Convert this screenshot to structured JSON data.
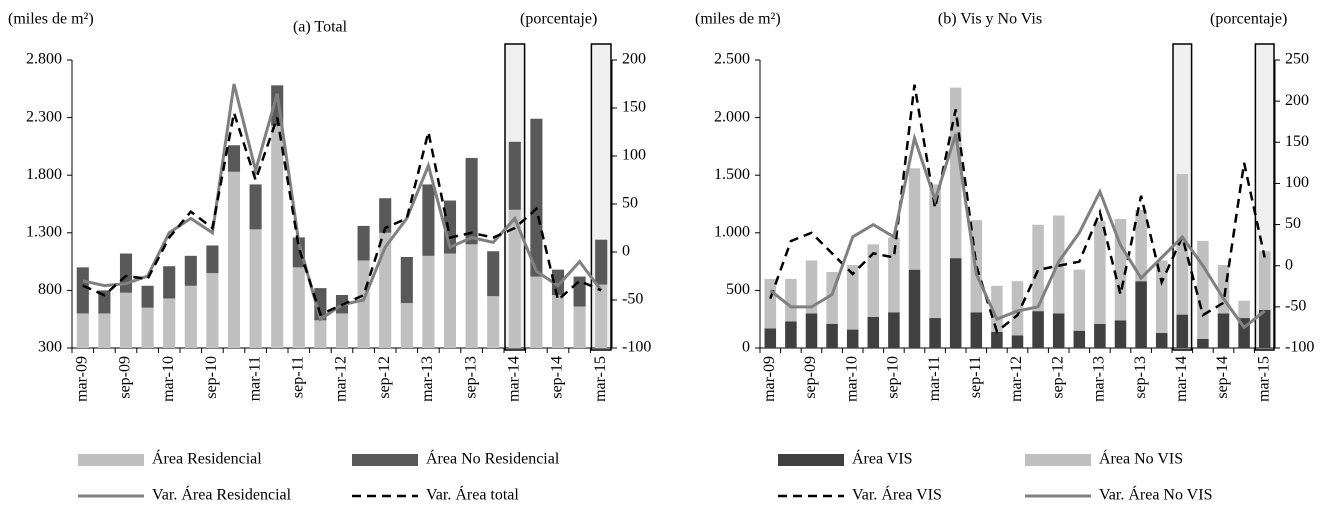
{
  "chart_data": [
    {
      "type": "bar",
      "title": "(a) Total",
      "y_label": "(miles de m²)",
      "y2_label": "(porcentaje)",
      "categories": [
        "mar-09",
        null,
        "sep-09",
        null,
        "mar-10",
        null,
        "sep-10",
        null,
        "mar-11",
        null,
        "sep-11",
        null,
        "mar-12",
        null,
        "sep-12",
        null,
        "mar-13",
        null,
        "sep-13",
        null,
        "mar-14",
        null,
        "sep-14",
        null,
        "mar-15"
      ],
      "ylim": [
        300,
        2800
      ],
      "yticks": [
        300,
        800,
        {
          "value": 1300,
          "label": "1.300"
        },
        {
          "value": 1800,
          "label": "1.800"
        },
        {
          "value": 2300,
          "label": "2.300"
        },
        {
          "value": 2800,
          "label": "2.800"
        }
      ],
      "y2lim": [
        -100,
        200
      ],
      "y2ticks": [
        -100,
        -50,
        0,
        50,
        100,
        150,
        200
      ],
      "series": [
        {
          "name": "Área Residencial",
          "type": "bar",
          "color": "#c0c0c0",
          "values": [
            600,
            600,
            780,
            650,
            730,
            840,
            950,
            1830,
            1330,
            2230,
            1000,
            540,
            600,
            1060,
            1300,
            690,
            1100,
            1120,
            1200,
            750,
            1500,
            920,
            760,
            660,
            850
          ]
        },
        {
          "name": "Área No Residencial",
          "type": "bar",
          "color": "#595959",
          "values": [
            400,
            200,
            340,
            190,
            280,
            260,
            240,
            230,
            390,
            350,
            260,
            280,
            160,
            300,
            300,
            400,
            620,
            460,
            750,
            390,
            590,
            1370,
            220,
            260,
            390
          ]
        },
        {
          "name": "Var. Área Residencial",
          "type": "line",
          "axis": "y2",
          "color": "#808080",
          "dash": false,
          "values": [
            -30,
            -35,
            -33,
            -25,
            20,
            35,
            20,
            175,
            85,
            165,
            10,
            -70,
            -55,
            -50,
            5,
            35,
            90,
            5,
            15,
            10,
            35,
            -20,
            -35,
            -10,
            -40
          ]
        },
        {
          "name": "Var. Área total",
          "type": "line",
          "axis": "y2",
          "color": "#000000",
          "dash": true,
          "values": [
            -35,
            -45,
            -25,
            -28,
            15,
            42,
            25,
            145,
            75,
            140,
            5,
            -65,
            -55,
            -45,
            25,
            35,
            125,
            15,
            20,
            15,
            25,
            45,
            -50,
            -30,
            -40
          ]
        }
      ]
    },
    {
      "type": "bar",
      "title": "(b) Vis y No Vis",
      "y_label": "(miles de m²)",
      "y2_label": "(porcentaje)",
      "categories": [
        "mar-09",
        null,
        "sep-09",
        null,
        "mar-10",
        null,
        "sep-10",
        null,
        "mar-11",
        null,
        "sep-11",
        null,
        "mar-12",
        null,
        "sep-12",
        null,
        "mar-13",
        null,
        "sep-13",
        null,
        "mar-14",
        null,
        "sep-14",
        null,
        "mar-15"
      ],
      "ylim": [
        0,
        2500
      ],
      "yticks": [
        0,
        500,
        {
          "value": 1000,
          "label": "1.000"
        },
        {
          "value": 1500,
          "label": "1.500"
        },
        {
          "value": 2000,
          "label": "2.000"
        },
        {
          "value": 2500,
          "label": "2.500"
        }
      ],
      "y2lim": [
        -100,
        250
      ],
      "y2ticks": [
        -100,
        -50,
        0,
        50,
        100,
        150,
        200,
        250
      ],
      "series": [
        {
          "name": "Área VIS",
          "type": "bar",
          "color": "#404040",
          "values": [
            170,
            230,
            300,
            210,
            160,
            270,
            310,
            680,
            260,
            780,
            310,
            140,
            110,
            320,
            300,
            150,
            210,
            240,
            580,
            130,
            290,
            80,
            300,
            260,
            330
          ]
        },
        {
          "name": "Área No VIS",
          "type": "bar",
          "color": "#c0c0c0",
          "values": [
            430,
            370,
            460,
            450,
            560,
            630,
            650,
            880,
            1160,
            1480,
            800,
            400,
            470,
            750,
            850,
            530,
            890,
            880,
            620,
            630,
            1220,
            850,
            420,
            150,
            510
          ]
        },
        {
          "name": "Var. Área VIS",
          "type": "line",
          "axis": "y2",
          "color": "#000000",
          "dash": true,
          "values": [
            -40,
            30,
            40,
            15,
            -10,
            15,
            10,
            220,
            70,
            190,
            0,
            -80,
            -60,
            -5,
            0,
            5,
            65,
            -35,
            85,
            -20,
            35,
            -60,
            -45,
            125,
            10
          ]
        },
        {
          "name": "Var. Área No VIS",
          "type": "line",
          "axis": "y2",
          "color": "#808080",
          "dash": false,
          "values": [
            -30,
            -50,
            -50,
            -35,
            35,
            50,
            35,
            155,
            80,
            160,
            -10,
            -65,
            -55,
            -50,
            5,
            40,
            90,
            25,
            -15,
            10,
            35,
            0,
            -40,
            -75,
            -55
          ]
        }
      ]
    }
  ]
}
